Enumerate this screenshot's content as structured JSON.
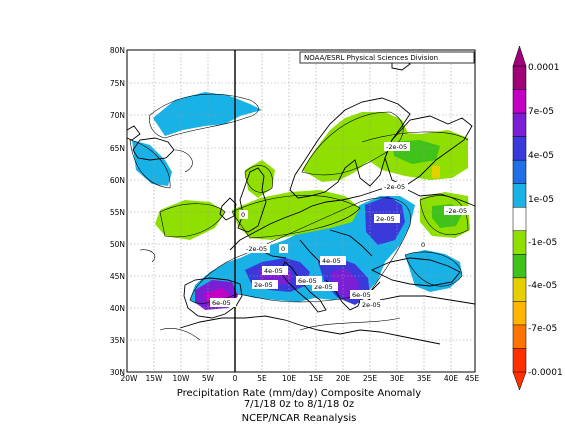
{
  "map": {
    "credit": "NOAA/ESRL Physical Sciences Division",
    "lat_labels": [
      "80N",
      "75N",
      "70N",
      "65N",
      "60N",
      "55N",
      "50N",
      "45N",
      "40N",
      "35N",
      "30N"
    ],
    "lon_labels": [
      "20W",
      "15W",
      "10W",
      "5W",
      "0",
      "5E",
      "10E",
      "15E",
      "20E",
      "25E",
      "30E",
      "35E",
      "40E",
      "45E"
    ],
    "contour_labels": [
      "-2e-05",
      "-2e-05",
      "-2e-05",
      "-2e-05",
      "2e-05",
      "4e-05",
      "2e-05",
      "4e-05",
      "2e-05",
      "6e-05",
      "6e-05",
      "2e-05",
      "6e-05",
      "0",
      "0",
      "0"
    ],
    "grid": true,
    "colors": {
      "land": "#ffffff",
      "coast": "#000000",
      "grid": "#999999",
      "contour": "#000000"
    }
  },
  "colorbar": {
    "labels": [
      "0.0001",
      "7e-05",
      "4e-05",
      "1e-05",
      "-1e-05",
      "-4e-05",
      "-7e-05",
      "-0.0001"
    ],
    "colors": [
      "#a0007a",
      "#c400c4",
      "#7a1fd6",
      "#3a3adb",
      "#1f6fe6",
      "#19b2e6",
      "#ffffff",
      "#8fe000",
      "#3fc21a",
      "#e6cf00",
      "#ffb400",
      "#ff7300",
      "#ff2f00"
    ]
  },
  "caption": {
    "line1": "Precipitation Rate (mm/day)    Composite Anomaly",
    "line2": "7/1/18 0z  to 8/1/18 0z",
    "line3": "NCEP/NCAR Reanalysis"
  }
}
